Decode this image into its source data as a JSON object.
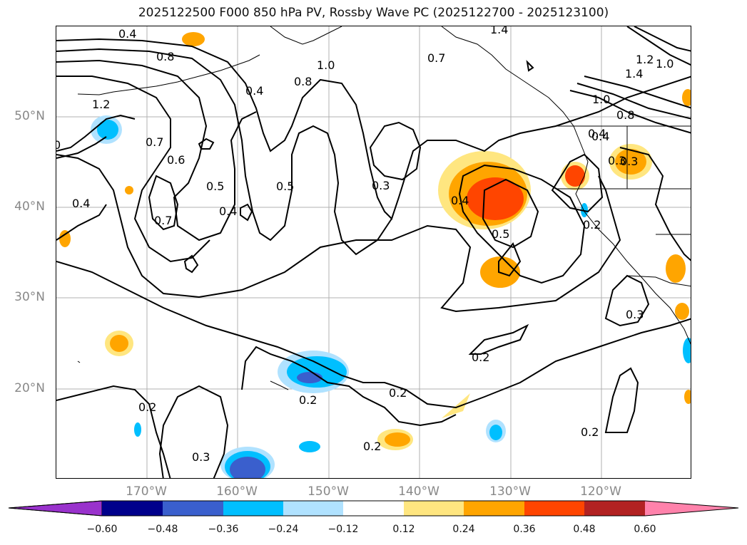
{
  "title": "2025122500 F000 850 hPa PV, Rossby Wave PC (2025122700 - 2025123100)",
  "lat_labels": [
    "50°N",
    "40°N",
    "30°N",
    "20°N"
  ],
  "lon_labels": [
    "170°W",
    "160°W",
    "150°W",
    "140°W",
    "130°W",
    "120°W"
  ],
  "contour_labels": [
    "0.4",
    "0.8",
    "1.2",
    "1.0",
    "0.8",
    "0.7",
    "1.4",
    "1.2",
    "1.4",
    "1.0",
    "0.4",
    "0.7",
    "0.6",
    "0.5",
    "0.5",
    "0.4",
    "0.4",
    "0.7",
    "0.3",
    "0.4",
    "0.5",
    "0.4",
    "0.3",
    "0.2",
    "0.3",
    "0.2",
    "0.2",
    "0.2",
    "0.2",
    "0.2",
    "0.3",
    "1.0",
    "0.8",
    "0.4",
    "0.3",
    "0.2",
    "0"
  ],
  "colorbar": {
    "tick_labels": [
      "−0.60",
      "−0.48",
      "−0.36",
      "−0.24",
      "−0.12",
      "0.12",
      "0.24",
      "0.36",
      "0.48",
      "0.60"
    ],
    "colors": [
      "#9932cc",
      "#00008b",
      "#3a5fcd",
      "#00bfff",
      "#b0e2ff",
      "#ffffff",
      "#ffe680",
      "#ffa500",
      "#ff4500",
      "#b22222",
      "#ff82ab"
    ]
  }
}
